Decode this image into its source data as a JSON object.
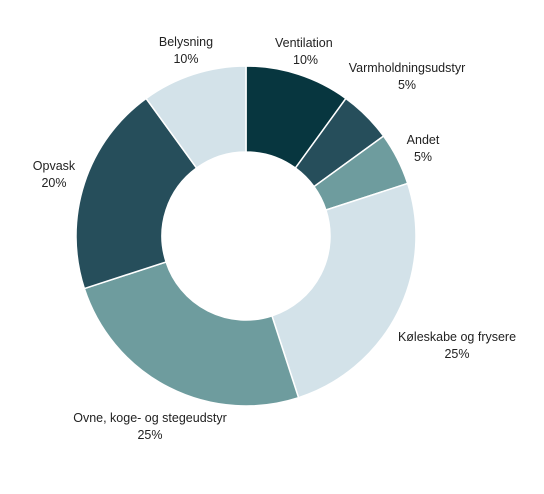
{
  "chart_data": {
    "type": "pie",
    "variant": "donut",
    "legend": "none",
    "slices": [
      {
        "label": "Ventilation",
        "value_label": "10%",
        "value": 10,
        "color": "#07363f"
      },
      {
        "label": "Varmholdningsudstyr",
        "value_label": "5%",
        "value": 5,
        "color": "#264e5b"
      },
      {
        "label": "Andet",
        "value_label": "5%",
        "value": 5,
        "color": "#6e9c9e"
      },
      {
        "label": "Køleskabe og frysere",
        "value_label": "25%",
        "value": 25,
        "color": "#d3e2e9"
      },
      {
        "label": "Ovne, koge- og stegeudstyr",
        "value_label": "25%",
        "value": 25,
        "color": "#6e9c9e"
      },
      {
        "label": "Opvask",
        "value_label": "20%",
        "value": 20,
        "color": "#264e5b"
      },
      {
        "label": "Belysning",
        "value_label": "10%",
        "value": 10,
        "color": "#d3e2e9"
      }
    ]
  }
}
